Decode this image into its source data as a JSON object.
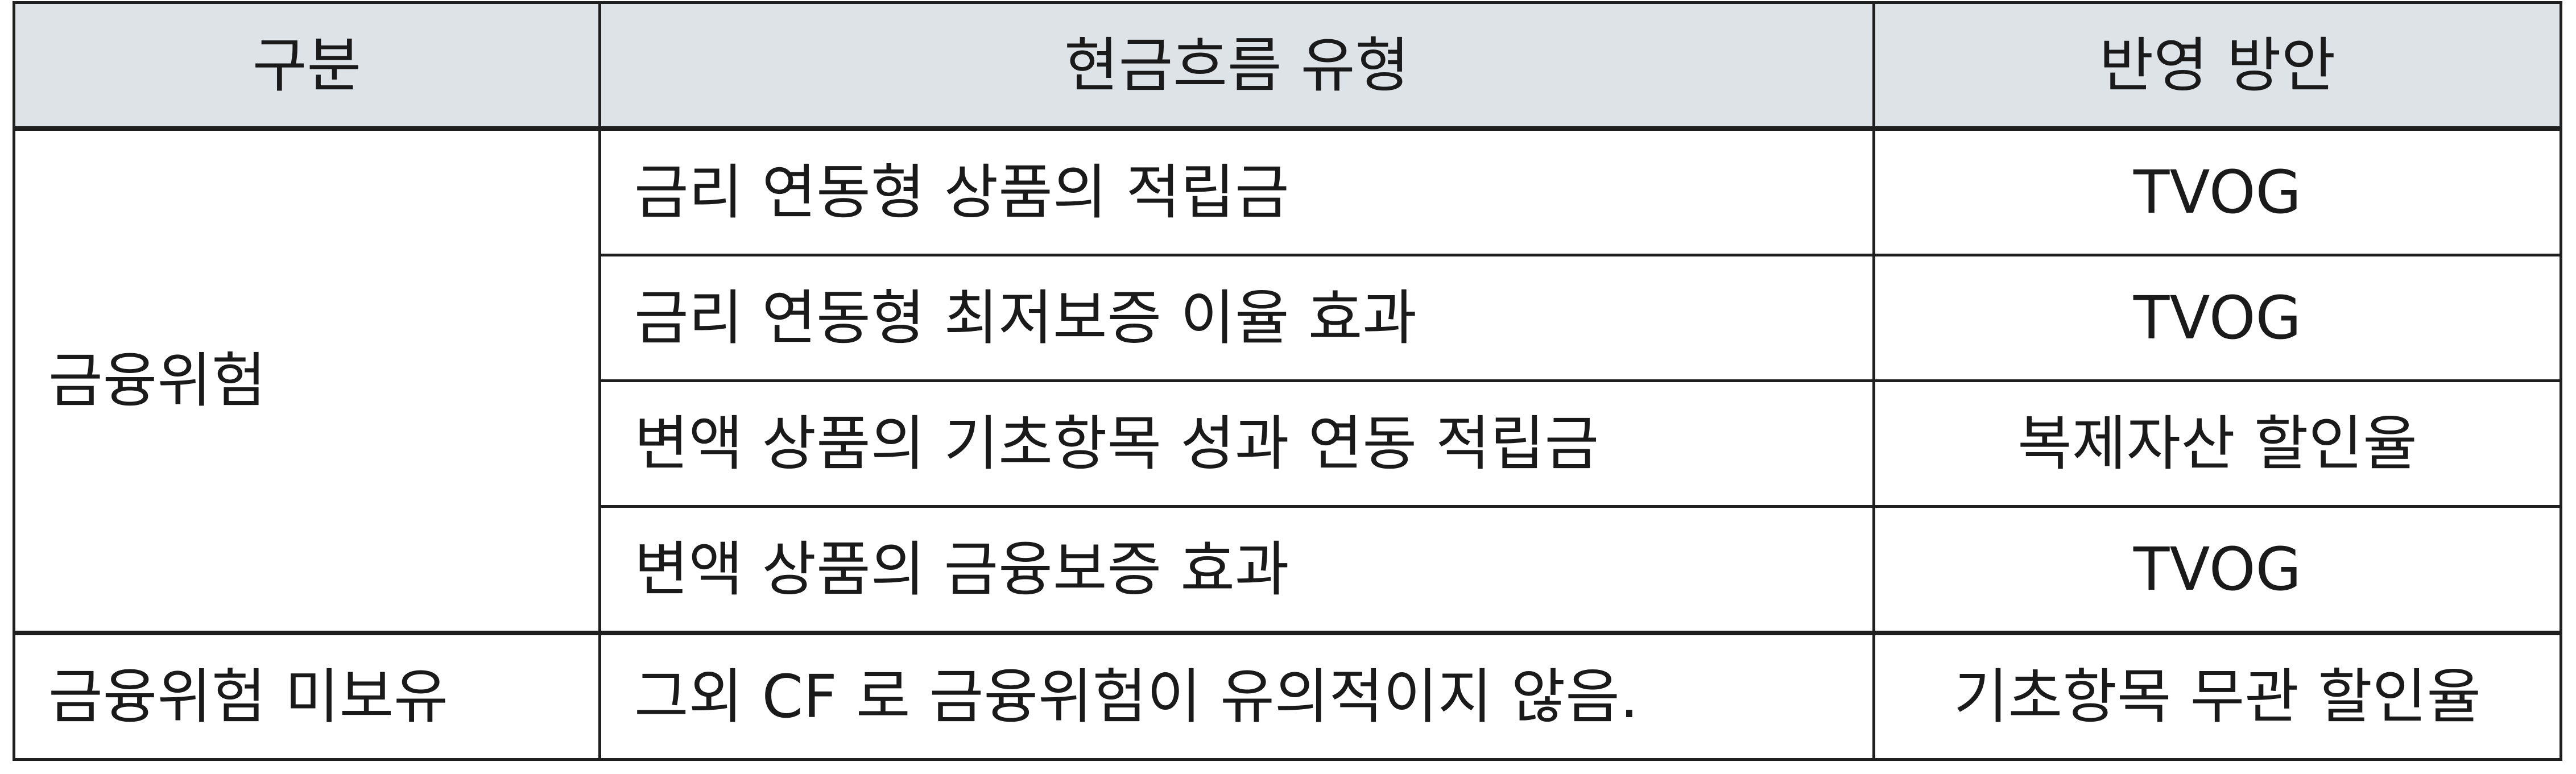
{
  "table": {
    "headers": [
      "구분",
      "현금흐름 유형",
      "반영 방안"
    ],
    "groups": [
      {
        "category": "금융위험",
        "rows": [
          {
            "type": "금리 연동형 상품의 적립금",
            "method": "TVOG"
          },
          {
            "type": "금리 연동형 최저보증 이율 효과",
            "method": "TVOG"
          },
          {
            "type": "변액 상품의 기초항목 성과 연동 적립금",
            "method": "복제자산 할인율"
          },
          {
            "type": "변액 상품의 금융보증 효과",
            "method": "TVOG"
          }
        ]
      },
      {
        "category": "금융위험 미보유",
        "rows": [
          {
            "type": "그외 CF 로 금융위험이 유의적이지 않음.",
            "method": "기초항목 무관 할인율"
          }
        ]
      }
    ]
  }
}
